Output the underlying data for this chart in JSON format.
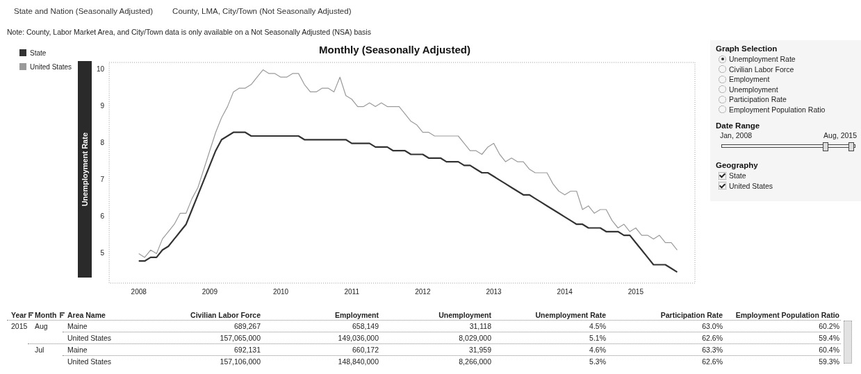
{
  "chart_data": [
    {
      "type": "line",
      "title": "Monthly (Seasonally Adjusted)",
      "ylabel": "Unemployment Rate",
      "annotations": [
        "State and Nation (Seasonally Adjusted)",
        "County, LMA, City/Town (Not Seasonally Adjusted)",
        "Note: County, Labor Market Area, and City/Town data is only available on a Not Seasonally Adjusted (NSA) basis"
      ],
      "x": [
        "2008-01",
        "2008-02",
        "2008-03",
        "2008-04",
        "2008-05",
        "2008-06",
        "2008-07",
        "2008-08",
        "2008-09",
        "2008-10",
        "2008-11",
        "2008-12",
        "2009-01",
        "2009-02",
        "2009-03",
        "2009-04",
        "2009-05",
        "2009-06",
        "2009-07",
        "2009-08",
        "2009-09",
        "2009-10",
        "2009-11",
        "2009-12",
        "2010-01",
        "2010-02",
        "2010-03",
        "2010-04",
        "2010-05",
        "2010-06",
        "2010-07",
        "2010-08",
        "2010-09",
        "2010-10",
        "2010-11",
        "2010-12",
        "2011-01",
        "2011-02",
        "2011-03",
        "2011-04",
        "2011-05",
        "2011-06",
        "2011-07",
        "2011-08",
        "2011-09",
        "2011-10",
        "2011-11",
        "2011-12",
        "2012-01",
        "2012-02",
        "2012-03",
        "2012-04",
        "2012-05",
        "2012-06",
        "2012-07",
        "2012-08",
        "2012-09",
        "2012-10",
        "2012-11",
        "2012-12",
        "2013-01",
        "2013-02",
        "2013-03",
        "2013-04",
        "2013-05",
        "2013-06",
        "2013-07",
        "2013-08",
        "2013-09",
        "2013-10",
        "2013-11",
        "2013-12",
        "2014-01",
        "2014-02",
        "2014-03",
        "2014-04",
        "2014-05",
        "2014-06",
        "2014-07",
        "2014-08",
        "2014-09",
        "2014-10",
        "2014-11",
        "2014-12",
        "2015-01",
        "2015-02",
        "2015-03",
        "2015-04",
        "2015-05",
        "2015-06",
        "2015-07",
        "2015-08"
      ],
      "series": [
        {
          "name": "State",
          "color": "#333333",
          "values": [
            4.8,
            4.8,
            4.9,
            4.9,
            5.1,
            5.2,
            5.4,
            5.6,
            5.8,
            6.2,
            6.6,
            7.0,
            7.4,
            7.8,
            8.1,
            8.2,
            8.3,
            8.3,
            8.3,
            8.2,
            8.2,
            8.2,
            8.2,
            8.2,
            8.2,
            8.2,
            8.2,
            8.2,
            8.1,
            8.1,
            8.1,
            8.1,
            8.1,
            8.1,
            8.1,
            8.1,
            8.0,
            8.0,
            8.0,
            8.0,
            7.9,
            7.9,
            7.9,
            7.8,
            7.8,
            7.8,
            7.7,
            7.7,
            7.7,
            7.6,
            7.6,
            7.6,
            7.5,
            7.5,
            7.5,
            7.4,
            7.4,
            7.3,
            7.2,
            7.2,
            7.1,
            7.0,
            6.9,
            6.8,
            6.7,
            6.6,
            6.6,
            6.5,
            6.4,
            6.3,
            6.2,
            6.1,
            6.0,
            5.9,
            5.8,
            5.8,
            5.7,
            5.7,
            5.7,
            5.6,
            5.6,
            5.6,
            5.5,
            5.5,
            5.3,
            5.1,
            4.9,
            4.7,
            4.7,
            4.7,
            4.6,
            4.5
          ]
        },
        {
          "name": "United States",
          "color": "#9a9a9a",
          "values": [
            5.0,
            4.9,
            5.1,
            5.0,
            5.4,
            5.6,
            5.8,
            6.1,
            6.1,
            6.5,
            6.8,
            7.3,
            7.8,
            8.3,
            8.7,
            9.0,
            9.4,
            9.5,
            9.5,
            9.6,
            9.8,
            10.0,
            9.9,
            9.9,
            9.8,
            9.8,
            9.9,
            9.9,
            9.6,
            9.4,
            9.4,
            9.5,
            9.5,
            9.4,
            9.8,
            9.3,
            9.2,
            9.0,
            9.0,
            9.1,
            9.0,
            9.1,
            9.0,
            9.0,
            9.0,
            8.8,
            8.6,
            8.5,
            8.3,
            8.3,
            8.2,
            8.2,
            8.2,
            8.2,
            8.2,
            8.0,
            7.8,
            7.8,
            7.7,
            7.9,
            8.0,
            7.7,
            7.5,
            7.6,
            7.5,
            7.5,
            7.3,
            7.2,
            7.2,
            7.2,
            6.9,
            6.7,
            6.6,
            6.7,
            6.7,
            6.2,
            6.3,
            6.1,
            6.2,
            6.2,
            5.9,
            5.7,
            5.8,
            5.6,
            5.7,
            5.5,
            5.5,
            5.4,
            5.5,
            5.3,
            5.3,
            5.1
          ]
        }
      ],
      "xlim": [
        "2007-08",
        "2015-11"
      ],
      "xticks": [
        "2008",
        "2009",
        "2010",
        "2011",
        "2012",
        "2013",
        "2014",
        "2015"
      ],
      "ylim": [
        4.2,
        10.2
      ],
      "yticks": [
        5,
        6,
        7,
        8,
        9,
        10
      ],
      "legend": "top left",
      "marker": "none",
      "line_style": "solid"
    },
    {
      "type": "other",
      "title": "Graph Selection",
      "categories": [
        "Unemployment Rate",
        "Civilian Labor Force",
        "Employment",
        "Unemployment",
        "Participation Rate",
        "Employment Population Ratio"
      ]
    },
    {
      "type": "other",
      "title": "Date Range",
      "annotations": [
        "Jan, 2008",
        "Aug, 2015"
      ]
    },
    {
      "type": "other",
      "title": "Geography",
      "categories": [
        "State",
        "United States"
      ]
    },
    {
      "type": "other",
      "categories": [
        "Year",
        "Month",
        "Area Name",
        "Civilian Labor Force",
        "Employment",
        "Unemployment",
        "Unemployment Rate",
        "Participation Rate",
        "Employment Population Ratio"
      ],
      "cell_labels": [
        [
          "2015",
          "Aug",
          "Maine",
          "689,267",
          "658,149",
          "31,118",
          "4.5%",
          "63.0%",
          "60.2%"
        ],
        [
          null,
          null,
          "United States",
          "157,065,000",
          "149,036,000",
          "8,029,000",
          "5.1%",
          "62.6%",
          "59.4%"
        ],
        [
          null,
          "Jul",
          "Maine",
          "692,131",
          "660,172",
          "31,959",
          "4.6%",
          "63.3%",
          "60.4%"
        ],
        [
          null,
          null,
          "United States",
          "157,106,000",
          "148,840,000",
          "8,266,000",
          "5.3%",
          "62.6%",
          "59.3%"
        ]
      ]
    }
  ]
}
